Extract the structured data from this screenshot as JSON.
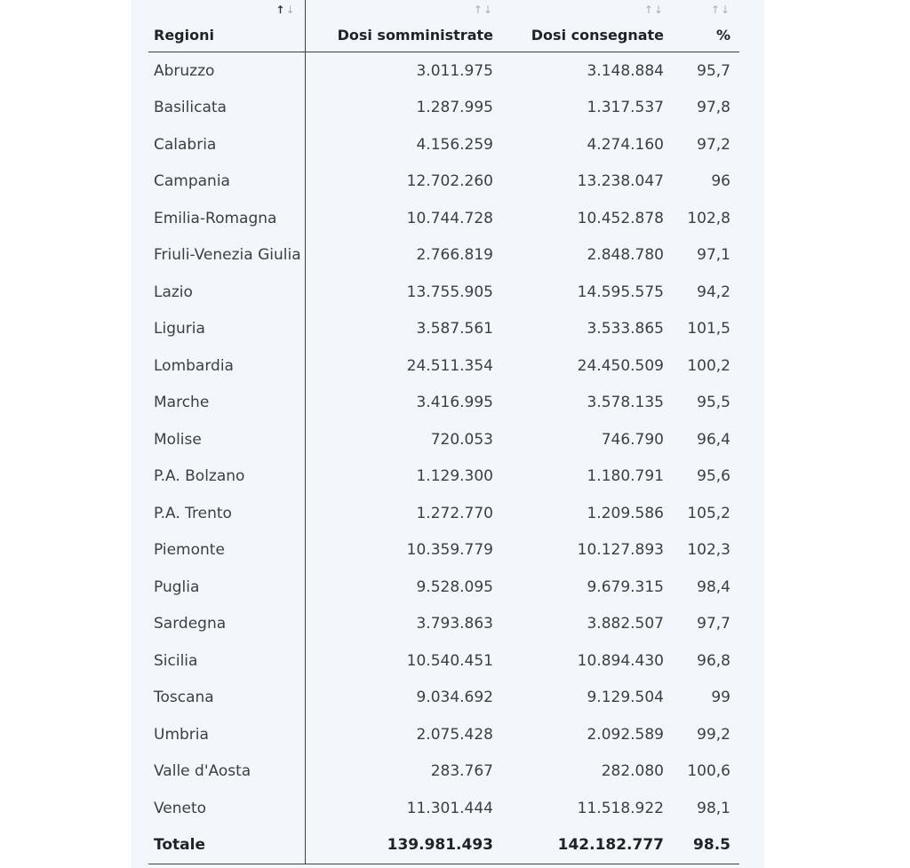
{
  "table": {
    "headers": {
      "region": "Regioni",
      "administered": "Dosi somministrate",
      "delivered": "Dosi consegnate",
      "percent": "%"
    },
    "sort_glyphs": {
      "up": "↑",
      "down": "↓"
    },
    "rows": [
      {
        "region": "Abruzzo",
        "administered": "3.011.975",
        "delivered": "3.148.884",
        "percent": "95,7"
      },
      {
        "region": "Basilicata",
        "administered": "1.287.995",
        "delivered": "1.317.537",
        "percent": "97,8"
      },
      {
        "region": "Calabria",
        "administered": "4.156.259",
        "delivered": "4.274.160",
        "percent": "97,2"
      },
      {
        "region": "Campania",
        "administered": "12.702.260",
        "delivered": "13.238.047",
        "percent": "96"
      },
      {
        "region": "Emilia-Romagna",
        "administered": "10.744.728",
        "delivered": "10.452.878",
        "percent": "102,8"
      },
      {
        "region": "Friuli-Venezia Giulia",
        "administered": "2.766.819",
        "delivered": "2.848.780",
        "percent": "97,1"
      },
      {
        "region": "Lazio",
        "administered": "13.755.905",
        "delivered": "14.595.575",
        "percent": "94,2"
      },
      {
        "region": "Liguria",
        "administered": "3.587.561",
        "delivered": "3.533.865",
        "percent": "101,5"
      },
      {
        "region": "Lombardia",
        "administered": "24.511.354",
        "delivered": "24.450.509",
        "percent": "100,2"
      },
      {
        "region": "Marche",
        "administered": "3.416.995",
        "delivered": "3.578.135",
        "percent": "95,5"
      },
      {
        "region": "Molise",
        "administered": "720.053",
        "delivered": "746.790",
        "percent": "96,4"
      },
      {
        "region": "P.A. Bolzano",
        "administered": "1.129.300",
        "delivered": "1.180.791",
        "percent": "95,6"
      },
      {
        "region": "P.A. Trento",
        "administered": "1.272.770",
        "delivered": "1.209.586",
        "percent": "105,2"
      },
      {
        "region": "Piemonte",
        "administered": "10.359.779",
        "delivered": "10.127.893",
        "percent": "102,3"
      },
      {
        "region": "Puglia",
        "administered": "9.528.095",
        "delivered": "9.679.315",
        "percent": "98,4"
      },
      {
        "region": "Sardegna",
        "administered": "3.793.863",
        "delivered": "3.882.507",
        "percent": "97,7"
      },
      {
        "region": "Sicilia",
        "administered": "10.540.451",
        "delivered": "10.894.430",
        "percent": "96,8"
      },
      {
        "region": "Toscana",
        "administered": "9.034.692",
        "delivered": "9.129.504",
        "percent": "99"
      },
      {
        "region": "Umbria",
        "administered": "2.075.428",
        "delivered": "2.092.589",
        "percent": "99,2"
      },
      {
        "region": "Valle d'Aosta",
        "administered": "283.767",
        "delivered": "282.080",
        "percent": "100,6"
      },
      {
        "region": "Veneto",
        "administered": "11.301.444",
        "delivered": "11.518.922",
        "percent": "98,1"
      }
    ],
    "total": {
      "region": "Totale",
      "administered": "139.981.493",
      "delivered": "142.182.777",
      "percent": "98.5"
    }
  }
}
